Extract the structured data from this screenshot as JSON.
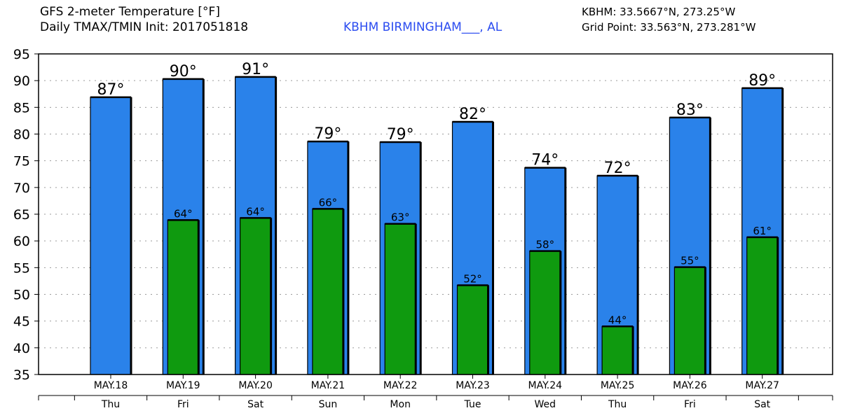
{
  "header": {
    "title_line1": "GFS 2-meter Temperature [°F]",
    "title_line2": "Daily TMAX/TMIN Init: 2017051818",
    "station": "KBHM BIRMINGHAM___, AL",
    "station_coords": "KBHM: 33.5667°N, 273.25°W",
    "grid_point": "Grid Point: 33.563°N, 273.281°W"
  },
  "colors": {
    "tmax": "#2a82ea",
    "tmin": "#0f9a0f",
    "station_text": "#2b4cf0"
  },
  "chart_data": {
    "type": "bar",
    "title": "GFS 2-meter Temperature [°F]",
    "ylabel": "°F",
    "ylim": [
      35,
      95
    ],
    "yticks": [
      35,
      40,
      45,
      50,
      55,
      60,
      65,
      70,
      75,
      80,
      85,
      90,
      95
    ],
    "grid": true,
    "categories": [
      "MAY.18",
      "MAY.19",
      "MAY.20",
      "MAY.21",
      "MAY.22",
      "MAY.23",
      "MAY.24",
      "MAY.25",
      "MAY.26",
      "MAY.27"
    ],
    "weekdays": [
      "Thu",
      "Fri",
      "Sat",
      "Sun",
      "Mon",
      "Tue",
      "Wed",
      "Thu",
      "Fri",
      "Sat"
    ],
    "series": [
      {
        "name": "TMAX",
        "values": [
          86.9,
          90.3,
          90.7,
          78.6,
          78.5,
          82.3,
          73.7,
          72.2,
          83.1,
          88.6
        ],
        "labels": [
          "87°",
          "90°",
          "91°",
          "79°",
          "79°",
          "82°",
          "74°",
          "72°",
          "83°",
          "89°"
        ]
      },
      {
        "name": "TMIN",
        "values": [
          null,
          63.9,
          64.3,
          66.0,
          63.2,
          51.7,
          58.1,
          44.0,
          55.1,
          60.7
        ],
        "labels": [
          "",
          "64°",
          "64°",
          "66°",
          "63°",
          "52°",
          "58°",
          "44°",
          "55°",
          "61°"
        ]
      }
    ]
  }
}
